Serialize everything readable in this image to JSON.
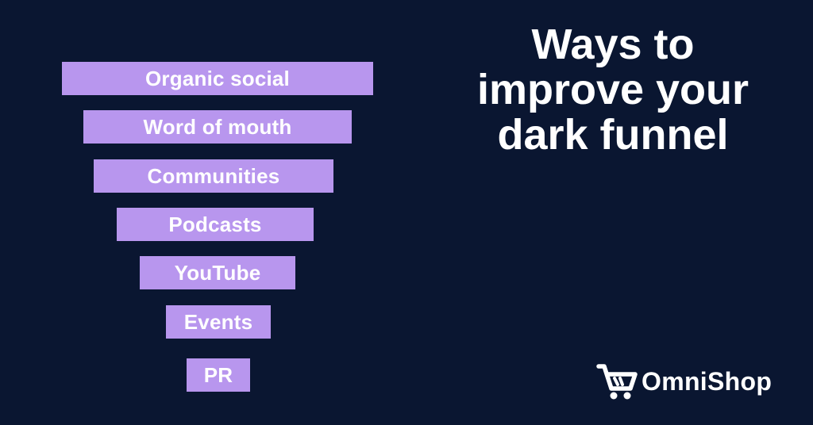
{
  "funnel": {
    "items": [
      {
        "label": "Organic social"
      },
      {
        "label": "Word of mouth"
      },
      {
        "label": "Communities"
      },
      {
        "label": "Podcasts"
      },
      {
        "label": "YouTube"
      },
      {
        "label": "Events"
      },
      {
        "label": "PR"
      }
    ],
    "bar_color": "#b896ee"
  },
  "headline": {
    "line1": "Ways to",
    "line2": "improve your",
    "line3": "dark funnel"
  },
  "brand": {
    "name": "OmniShop",
    "icon": "shopping-cart-icon"
  },
  "colors": {
    "background": "#0a1631",
    "text": "#ffffff"
  }
}
